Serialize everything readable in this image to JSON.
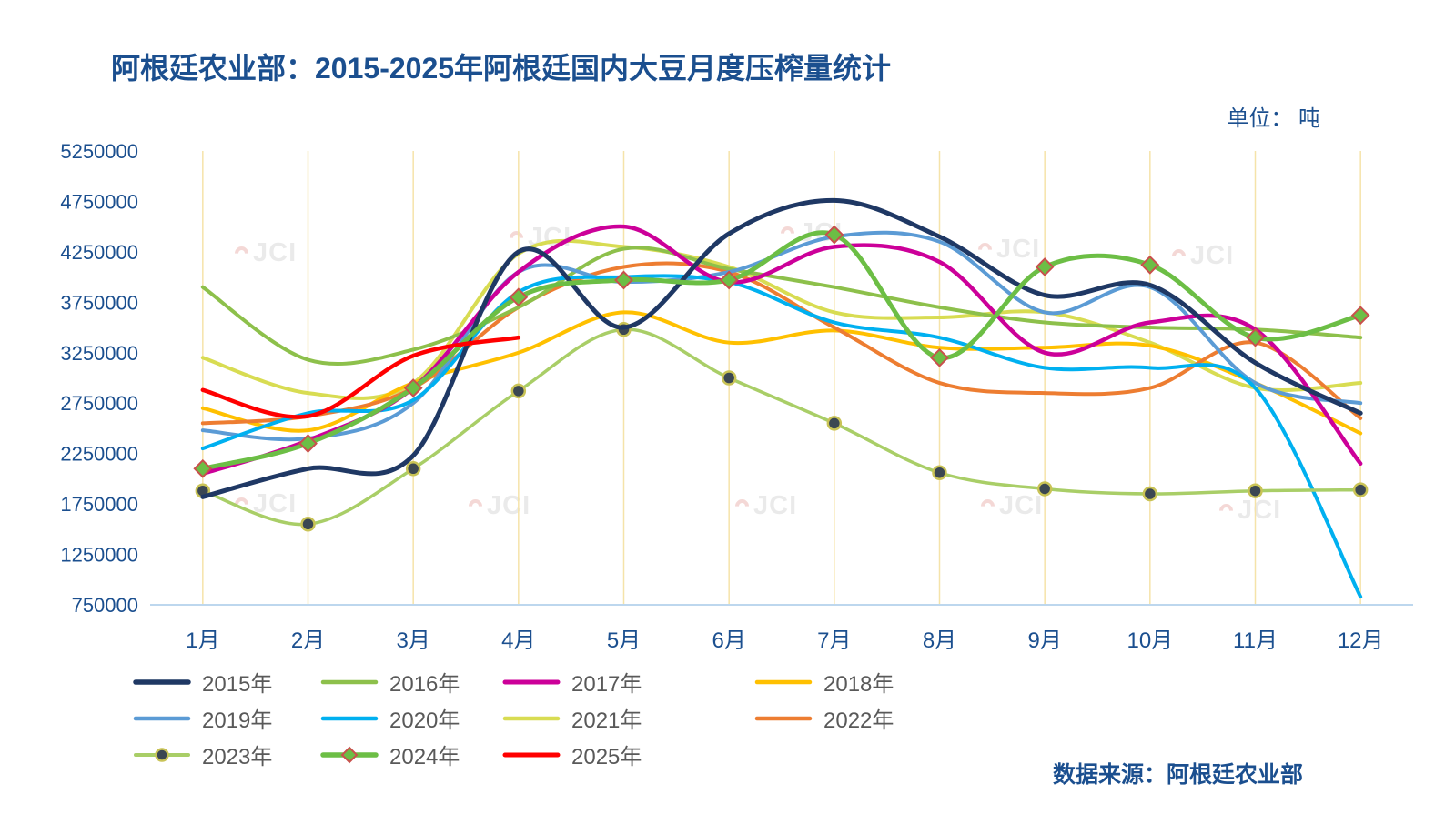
{
  "header": {
    "title": "阿根廷农业部：2015-2025年阿根廷国内大豆月度压榨量统计",
    "unit": "单位：  吨"
  },
  "footer": {
    "source": "数据来源：阿根廷农业部"
  },
  "watermark": "JCI",
  "chart_data": {
    "type": "line",
    "title": "阿根廷农业部：2015-2025年阿根廷国内大豆月度压榨量统计",
    "unit": "吨",
    "source": "数据来源：阿根廷农业部",
    "xlabel": "",
    "ylabel": "",
    "grid": "vertical",
    "legend_position": "bottom",
    "categories": [
      "1月",
      "2月",
      "3月",
      "4月",
      "5月",
      "6月",
      "7月",
      "8月",
      "9月",
      "10月",
      "11月",
      "12月"
    ],
    "ylim": [
      750000,
      5250000
    ],
    "y_ticks": [
      750000,
      1250000,
      1750000,
      2250000,
      2750000,
      3250000,
      3750000,
      4250000,
      4750000,
      5250000
    ],
    "series": [
      {
        "name": "2015年",
        "color": "#1F3864",
        "width": 5,
        "values": [
          1820000,
          2100000,
          2230000,
          4250000,
          3500000,
          4430000,
          4760000,
          4400000,
          3820000,
          3920000,
          3150000,
          2650000
        ]
      },
      {
        "name": "2016年",
        "color": "#8DC04B",
        "width": 4,
        "values": [
          3900000,
          3180000,
          3280000,
          3700000,
          4280000,
          4080000,
          3900000,
          3700000,
          3550000,
          3500000,
          3480000,
          3400000
        ]
      },
      {
        "name": "2017年",
        "color": "#CC0099",
        "width": 4.5,
        "values": [
          2050000,
          2380000,
          2900000,
          4050000,
          4500000,
          3950000,
          4300000,
          4150000,
          3250000,
          3550000,
          3480000,
          2150000
        ]
      },
      {
        "name": "2018年",
        "color": "#FFC000",
        "width": 4,
        "values": [
          2700000,
          2480000,
          2950000,
          3250000,
          3650000,
          3350000,
          3470000,
          3300000,
          3300000,
          3320000,
          2950000,
          2450000
        ]
      },
      {
        "name": "2019年",
        "color": "#5B9BD5",
        "width": 4,
        "values": [
          2480000,
          2400000,
          2750000,
          4050000,
          3950000,
          4050000,
          4400000,
          4350000,
          3650000,
          3900000,
          2950000,
          2750000
        ]
      },
      {
        "name": "2020年",
        "color": "#00B0F0",
        "width": 4,
        "values": [
          2300000,
          2650000,
          2780000,
          3850000,
          4000000,
          3950000,
          3550000,
          3400000,
          3100000,
          3100000,
          2900000,
          830000
        ]
      },
      {
        "name": "2021年",
        "color": "#D8DC52",
        "width": 4,
        "values": [
          3200000,
          2850000,
          2950000,
          4230000,
          4300000,
          4100000,
          3650000,
          3600000,
          3650000,
          3350000,
          2900000,
          2950000
        ]
      },
      {
        "name": "2022年",
        "color": "#ED7D31",
        "width": 4,
        "values": [
          2550000,
          2620000,
          2900000,
          3700000,
          4100000,
          4050000,
          3500000,
          2950000,
          2850000,
          2900000,
          3350000,
          2600000
        ]
      },
      {
        "name": "2023年",
        "color": "#A9CE67",
        "width": 3.5,
        "marker": "circle",
        "marker_fill": "#3B4752",
        "marker_stroke": "#C9C356",
        "values": [
          1880000,
          1550000,
          2100000,
          2870000,
          3480000,
          3000000,
          2550000,
          2060000,
          1900000,
          1850000,
          1880000,
          1890000
        ]
      },
      {
        "name": "2024年",
        "color": "#6CBE45",
        "width": 5,
        "marker": "diamond",
        "marker_fill": "#6CBE45",
        "marker_stroke": "#C9504C",
        "values": [
          2100000,
          2350000,
          2900000,
          3800000,
          3970000,
          3970000,
          4420000,
          3200000,
          4100000,
          4120000,
          3400000,
          3620000
        ]
      },
      {
        "name": "2025年",
        "color": "#FF0000",
        "width": 4.5,
        "values": [
          2880000,
          2620000,
          3220000,
          3400000,
          null,
          null,
          null,
          null,
          null,
          null,
          null,
          null
        ]
      }
    ]
  }
}
